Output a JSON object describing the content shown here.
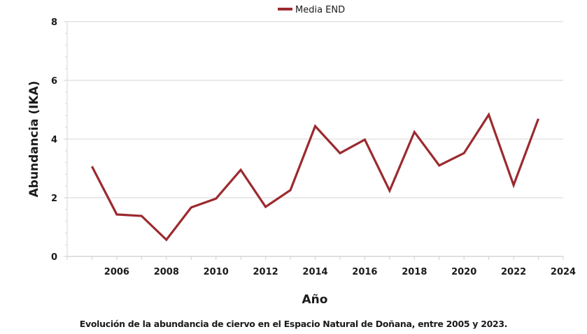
{
  "chart_data": {
    "type": "line",
    "title": "",
    "xlabel": "Año",
    "ylabel": "Abundancia (IKA)",
    "xlim": [
      2004,
      2024
    ],
    "ylim": [
      0,
      8
    ],
    "x_ticks": [
      2006,
      2008,
      2010,
      2012,
      2014,
      2016,
      2018,
      2020,
      2022,
      2024
    ],
    "y_ticks": [
      0,
      2,
      4,
      6,
      8
    ],
    "grid": true,
    "legend_position": "top-center",
    "series": [
      {
        "name": "Media END",
        "color": "#9b2a2e",
        "x": [
          2005,
          2006,
          2007,
          2008,
          2009,
          2010,
          2011,
          2012,
          2013,
          2014,
          2015,
          2016,
          2017,
          2018,
          2019,
          2020,
          2021,
          2022,
          2023
        ],
        "values": [
          3.07,
          1.43,
          1.38,
          0.57,
          1.67,
          1.97,
          2.95,
          1.69,
          2.26,
          4.44,
          3.52,
          3.98,
          2.24,
          4.24,
          3.1,
          3.52,
          4.83,
          2.43,
          4.69
        ]
      }
    ]
  },
  "caption": "Evolución de la abundancia de ciervo en el Espacio Natural de Doñana, entre 2005 y 2023."
}
